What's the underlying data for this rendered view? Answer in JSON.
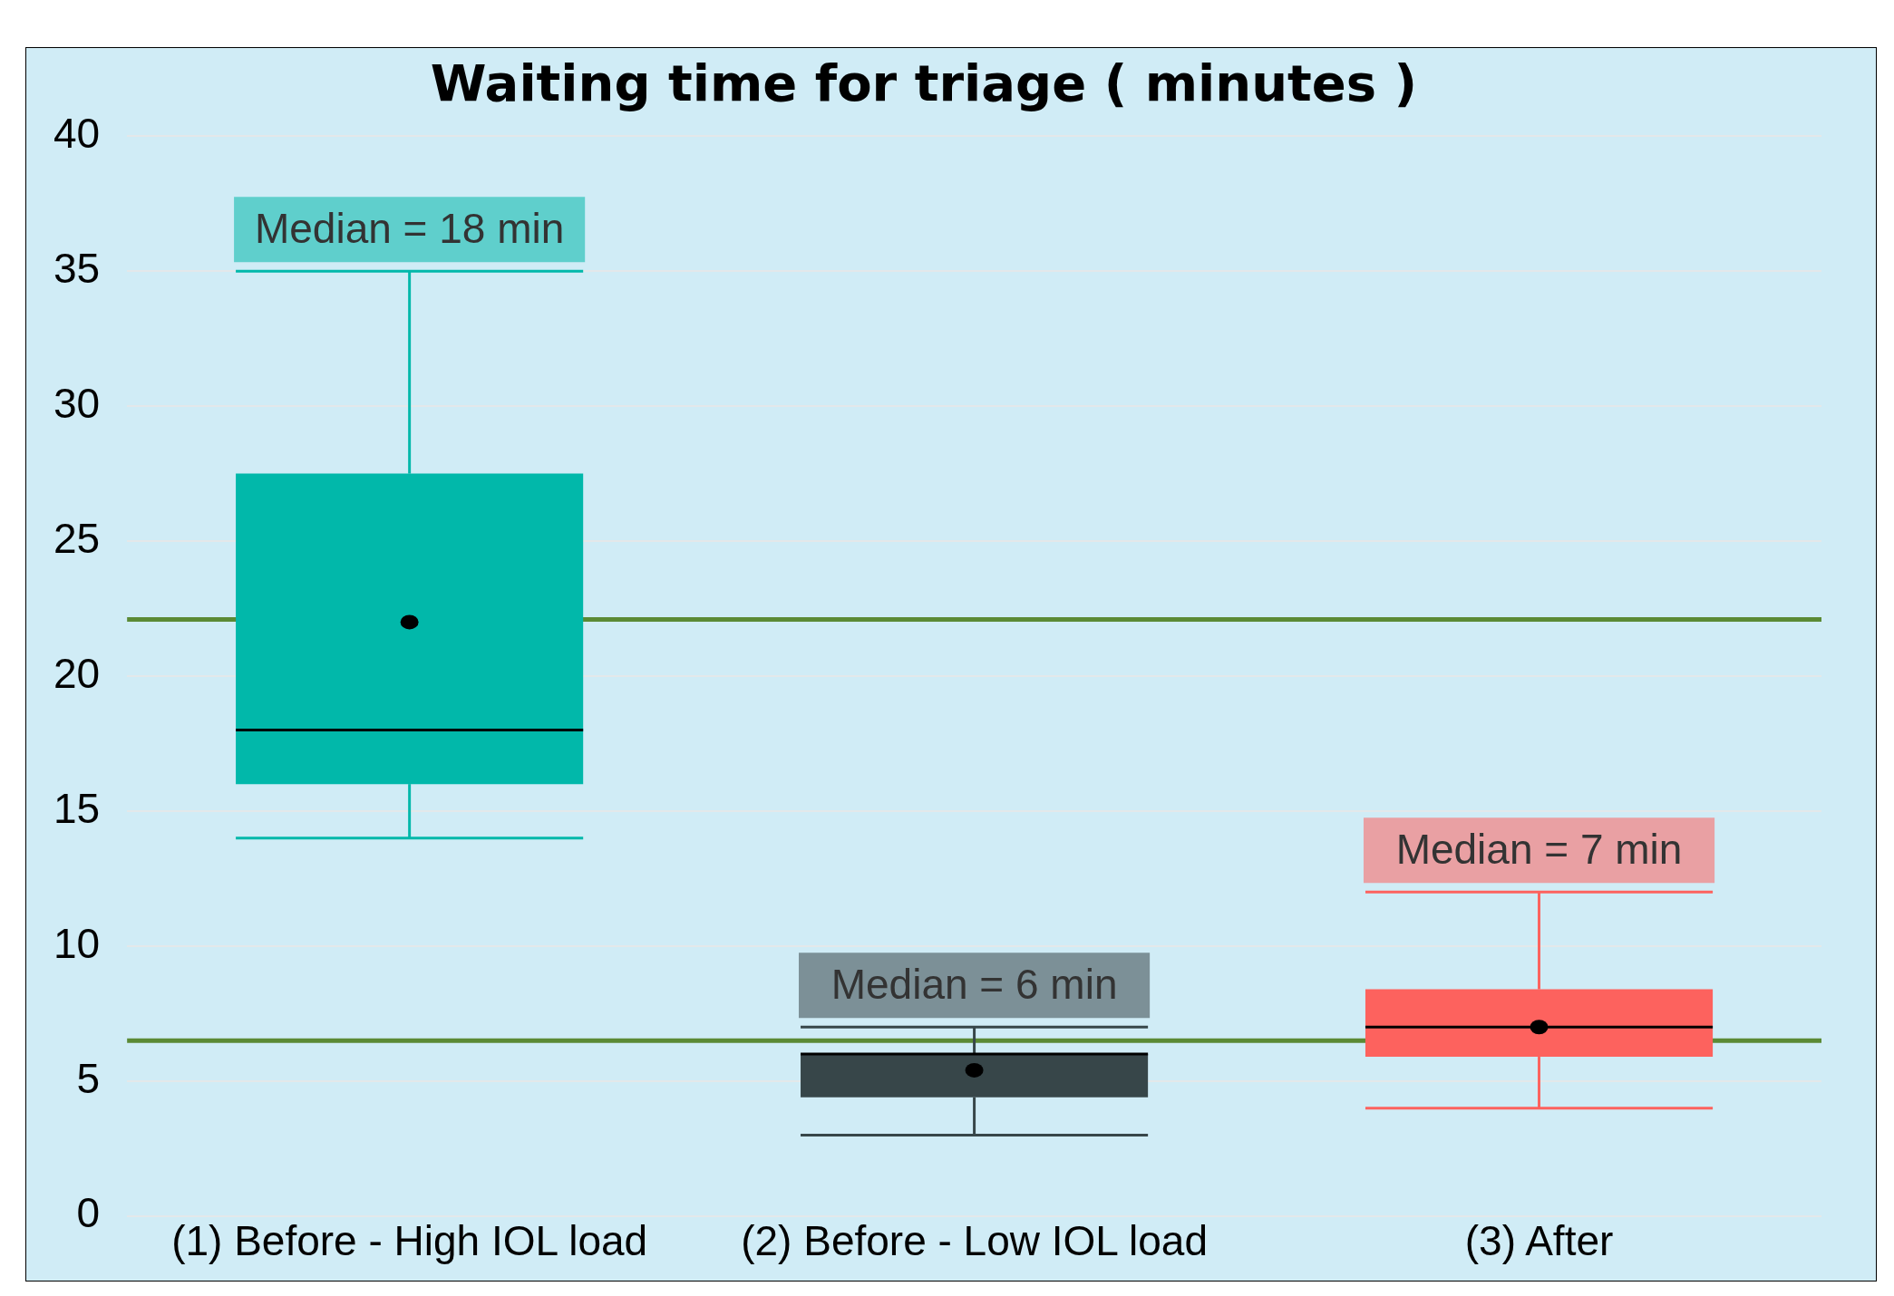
{
  "chart_data": {
    "type": "box",
    "title": "Waiting time for triage ( minutes )",
    "categories": [
      "(1) Before - High IOL load",
      "(2) Before - Low IOL load",
      "(3) After"
    ],
    "colors": [
      "#01b8aa",
      "#374649",
      "#fd625e"
    ],
    "boxes": [
      {
        "low": 14,
        "q1": 16,
        "median": 18,
        "q3": 27.5,
        "high": 35,
        "mean": 22
      },
      {
        "low": 3,
        "q1": 4.4,
        "median": 6,
        "q3": 6,
        "high": 7,
        "mean": 5.4
      },
      {
        "low": 4,
        "q1": 5.9,
        "median": 7,
        "q3": 8.4,
        "high": 12,
        "mean": 7
      }
    ],
    "ylim": [
      0,
      40
    ],
    "yticks": [
      0,
      5,
      10,
      15,
      20,
      25,
      30,
      35,
      40
    ],
    "grid": "y",
    "ref_lines": [
      {
        "axis": "y",
        "value": 22.1,
        "color": "#5b8a35"
      },
      {
        "axis": "y",
        "value": 6.5,
        "color": "#5b8a35"
      }
    ],
    "annotations": [
      {
        "text": "Median = 18 min",
        "x": "(1) Before - High IOL load",
        "y": 35
      },
      {
        "text": "Median = 6 min",
        "x": "(2) Before - Low IOL load",
        "y": 7
      },
      {
        "text": "Median = 7 min",
        "x": "(3) After",
        "y": 12
      }
    ]
  }
}
